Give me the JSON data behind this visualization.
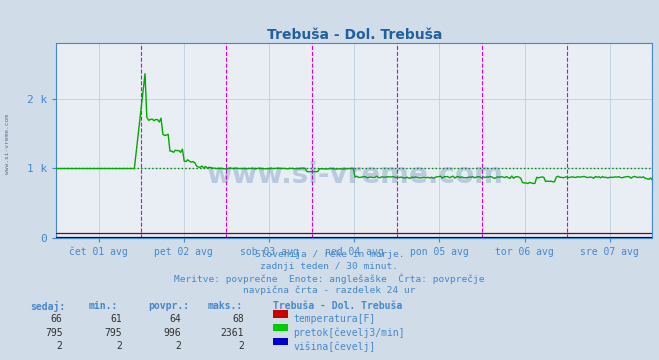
{
  "title": "Trebuša - Dol. Trebuša",
  "bg_color": "#d0dce8",
  "plot_bg_color": "#e8eef4",
  "grid_color": "#b8c8d8",
  "title_color": "#2060a0",
  "axis_color": "#4488cc",
  "tick_color": "#4488cc",
  "num_points": 336,
  "days": [
    "čet 01 avg",
    "pet 02 avg",
    "sob 03 avg",
    "ned 04 avg",
    "pon 05 avg",
    "tor 06 avg",
    "sre 07 avg"
  ],
  "day_tick_positions": [
    0.5,
    1.5,
    2.5,
    3.5,
    4.5,
    5.5,
    6.5
  ],
  "day_line_positions": [
    1.0,
    2.0,
    3.0,
    4.0,
    5.0,
    6.0,
    7.0
  ],
  "ylim": [
    0,
    2800
  ],
  "yticks": [
    0,
    1000,
    2000
  ],
  "ytick_labels": [
    "0",
    "1 k",
    "2 k"
  ],
  "avg_line_y": 996,
  "temp_color": "#880000",
  "flow_color": "#00aa00",
  "height_color": "#0000bb",
  "avg_line_color": "#008800",
  "magenta_line_color": "#dd00dd",
  "subtitle_lines": [
    "Slovenija / reke in morje.",
    "zadnji teden / 30 minut.",
    "Meritve: povprečne  Enote: anglešaške  Črta: povprečje",
    "navpična črta - razdelek 24 ur"
  ],
  "table_headers": [
    "sedaj:",
    "min.:",
    "povpr.:",
    "maks.:"
  ],
  "table_data": [
    [
      "66",
      "61",
      "64",
      "68"
    ],
    [
      "795",
      "795",
      "996",
      "2361"
    ],
    [
      "2",
      "2",
      "2",
      "2"
    ]
  ],
  "legend_labels": [
    "temperatura[F]",
    "pretok[čevelj3/min]",
    "višina[čevelj]"
  ],
  "legend_colors": [
    "#cc0000",
    "#00cc00",
    "#0000cc"
  ],
  "station_label": "Trebuša - Dol. Trebuša",
  "watermark": "www.si-vreme.com",
  "left_watermark": "www.si-vreme.com"
}
